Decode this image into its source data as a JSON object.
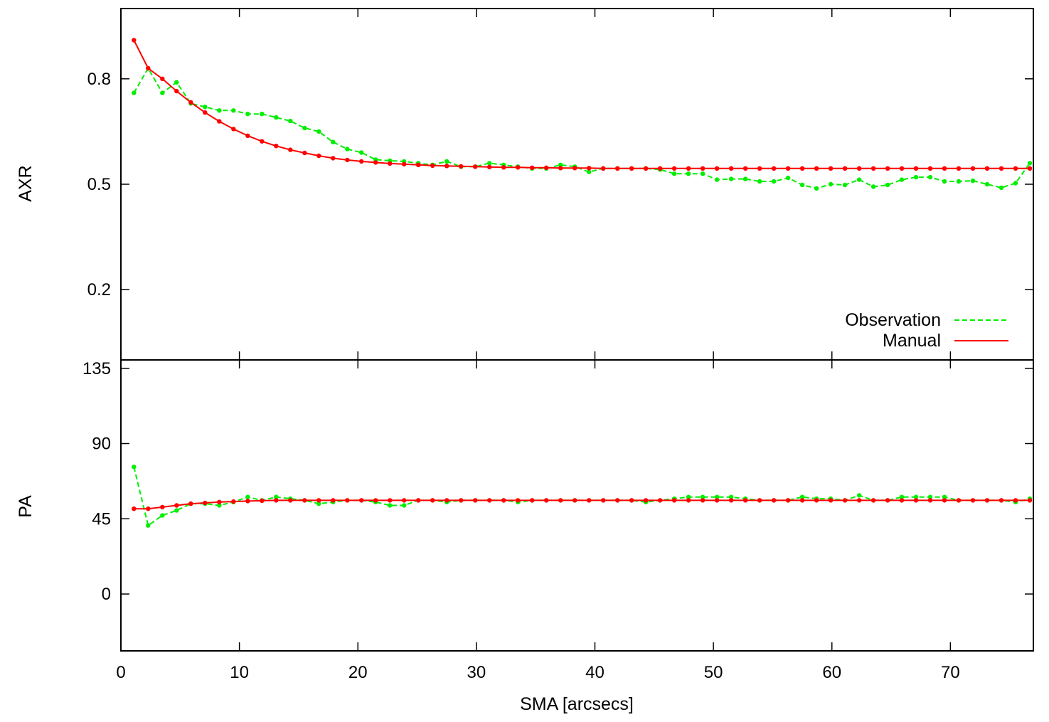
{
  "chart_data": {
    "type": "line",
    "x": [
      1.1,
      2.3,
      3.5,
      4.7,
      5.9,
      7.1,
      8.3,
      9.5,
      10.7,
      11.9,
      13.1,
      14.3,
      15.5,
      16.7,
      17.9,
      19.1,
      20.3,
      21.5,
      22.7,
      23.9,
      25.1,
      26.3,
      27.5,
      28.7,
      29.9,
      31.1,
      32.3,
      33.5,
      34.7,
      35.9,
      37.1,
      38.3,
      39.5,
      40.7,
      41.9,
      43.1,
      44.3,
      45.5,
      46.7,
      47.9,
      49.1,
      50.3,
      51.5,
      52.7,
      53.9,
      55.1,
      56.3,
      57.5,
      58.7,
      59.9,
      61.1,
      62.3,
      63.5,
      64.7,
      65.9,
      67.1,
      68.3,
      69.5,
      70.7,
      71.9,
      73.1,
      74.3,
      75.5,
      76.7
    ],
    "xlabel": "SMA [arcsecs]",
    "xlim": [
      0,
      77
    ],
    "xticks": [
      "0",
      "10",
      "20",
      "30",
      "40",
      "50",
      "60",
      "70"
    ],
    "grid": false,
    "legend_position": "bottom-right of upper panel",
    "panels": [
      {
        "ylabel": "AXR",
        "ylim": [
          0.0,
          1.0
        ],
        "yticks": [
          "0.2",
          "0.5",
          "0.8"
        ],
        "series": [
          {
            "name": "Observation",
            "color": "#00ee00",
            "style": "dashed",
            "values": [
              0.76,
              0.83,
              0.76,
              0.79,
              0.73,
              0.72,
              0.71,
              0.71,
              0.7,
              0.7,
              0.69,
              0.68,
              0.66,
              0.65,
              0.62,
              0.6,
              0.59,
              0.57,
              0.567,
              0.565,
              0.56,
              0.555,
              0.565,
              0.55,
              0.55,
              0.56,
              0.555,
              0.55,
              0.545,
              0.545,
              0.555,
              0.55,
              0.535,
              0.545,
              0.545,
              0.545,
              0.545,
              0.542,
              0.53,
              0.53,
              0.53,
              0.513,
              0.515,
              0.515,
              0.508,
              0.508,
              0.518,
              0.498,
              0.488,
              0.5,
              0.498,
              0.513,
              0.493,
              0.498,
              0.513,
              0.52,
              0.52,
              0.508,
              0.508,
              0.51,
              0.5,
              0.49,
              0.503,
              0.56
            ]
          },
          {
            "name": "Manual",
            "color": "#ff0000",
            "style": "solid",
            "values": [
              0.91,
              0.83,
              0.8,
              0.765,
              0.733,
              0.704,
              0.679,
              0.657,
              0.638,
              0.622,
              0.609,
              0.598,
              0.589,
              0.581,
              0.574,
              0.569,
              0.565,
              0.562,
              0.559,
              0.557,
              0.555,
              0.553,
              0.552,
              0.551,
              0.55,
              0.549,
              0.548,
              0.548,
              0.547,
              0.547,
              0.546,
              0.546,
              0.546,
              0.545,
              0.545,
              0.545,
              0.545,
              0.545,
              0.545,
              0.545,
              0.545,
              0.545,
              0.545,
              0.545,
              0.545,
              0.545,
              0.545,
              0.545,
              0.545,
              0.545,
              0.545,
              0.545,
              0.545,
              0.545,
              0.545,
              0.545,
              0.545,
              0.545,
              0.545,
              0.545,
              0.545,
              0.545,
              0.545,
              0.545
            ]
          }
        ]
      },
      {
        "ylabel": "PA",
        "ylim": [
          -34,
          140
        ],
        "yticks": [
          "0",
          "45",
          "90",
          "135"
        ],
        "series": [
          {
            "name": "Observation",
            "color": "#00ee00",
            "style": "dashed",
            "values": [
              76,
              41,
              47,
              50,
              54,
              54,
              53,
              55,
              58,
              56,
              58,
              57,
              56,
              54,
              55,
              56,
              56,
              55,
              53,
              53,
              56,
              56,
              55,
              56,
              56,
              56,
              56,
              55,
              56,
              56,
              56,
              56,
              56,
              56,
              56,
              56,
              55,
              56,
              57,
              58,
              58,
              58,
              58,
              57,
              56,
              56,
              56,
              58,
              57,
              57,
              56,
              59,
              56,
              56,
              58,
              58,
              58,
              58,
              56,
              56,
              56,
              56,
              55,
              57
            ]
          },
          {
            "name": "Manual",
            "color": "#ff0000",
            "style": "solid",
            "values": [
              51,
              51,
              52,
              53,
              54,
              54.5,
              55,
              55.3,
              55.6,
              55.8,
              56,
              56,
              56,
              56,
              56,
              56,
              56,
              56,
              56,
              56,
              56,
              56,
              56,
              56,
              56,
              56,
              56,
              56,
              56,
              56,
              56,
              56,
              56,
              56,
              56,
              56,
              56,
              56,
              56,
              56,
              56,
              56,
              56,
              56,
              56,
              56,
              56,
              56,
              56,
              56,
              56,
              56,
              56,
              56,
              56,
              56,
              56,
              56,
              56,
              56,
              56,
              56,
              56,
              56
            ]
          }
        ]
      }
    ]
  }
}
